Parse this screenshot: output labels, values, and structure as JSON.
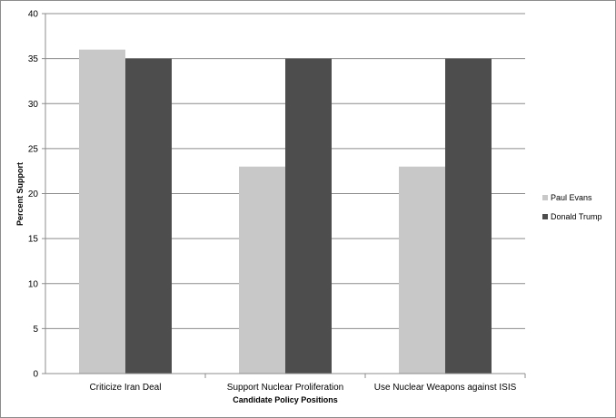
{
  "chart_data": {
    "type": "bar",
    "categories": [
      "Criticize Iran Deal",
      "Support Nuclear Proliferation",
      "Use Nuclear Weapons against ISIS"
    ],
    "series": [
      {
        "name": "Paul Evans",
        "values": [
          36,
          23,
          23
        ],
        "color": "#c8c8c8"
      },
      {
        "name": "Donald Trump",
        "values": [
          35,
          35,
          35
        ],
        "color": "#4d4d4d"
      }
    ],
    "title": "",
    "xlabel": "Candidate Policy Positions",
    "ylabel": "Percent Support",
    "ylim": [
      0,
      40
    ],
    "yticks": [
      0,
      5,
      10,
      15,
      20,
      25,
      30,
      35,
      40
    ],
    "grid": true,
    "legend_position": "right"
  }
}
